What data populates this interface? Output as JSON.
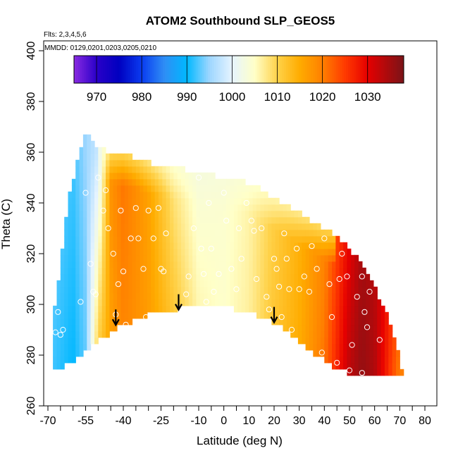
{
  "chart_data": {
    "type": "heatmap",
    "title": "ATOM2 Southbound SLP_GEOS5",
    "subtitle_flights": "Flts: 2,3,4,5,6",
    "subtitle_dates": "MMDD: 0129,0201,0203,0205,0210",
    "xlabel": "Latitude (deg N)",
    "ylabel": "Theta (C)",
    "xlim": [
      -70,
      80
    ],
    "ylim": [
      260,
      400
    ],
    "x_ticks_labeled": [
      -70,
      -55,
      -40,
      -25,
      -10,
      0,
      10,
      20,
      30,
      40,
      50,
      60,
      70,
      80
    ],
    "x_ticks_minor": [
      -65,
      -60,
      -50,
      -45,
      -35,
      -30,
      -20,
      -15,
      -5,
      5,
      15,
      25,
      35,
      45,
      55,
      65,
      75
    ],
    "y_ticks": [
      260,
      280,
      300,
      320,
      340,
      360,
      380,
      400
    ],
    "colorbar": {
      "min": 965,
      "max": 1038,
      "ticks": [
        970,
        980,
        990,
        1000,
        1010,
        1020,
        1030
      ],
      "stops": [
        {
          "v": 965,
          "c": "#8a2be2"
        },
        {
          "v": 970,
          "c": "#2a00c8"
        },
        {
          "v": 975,
          "c": "#0000c0"
        },
        {
          "v": 980,
          "c": "#0a3cf0"
        },
        {
          "v": 985,
          "c": "#2f8ef5"
        },
        {
          "v": 990,
          "c": "#00b8ff"
        },
        {
          "v": 995,
          "c": "#9ed6ff"
        },
        {
          "v": 1000,
          "c": "#e6f4ff"
        },
        {
          "v": 1005,
          "c": "#ffffc8"
        },
        {
          "v": 1010,
          "c": "#ffd24a"
        },
        {
          "v": 1015,
          "c": "#ffac00"
        },
        {
          "v": 1020,
          "c": "#ff7f00"
        },
        {
          "v": 1025,
          "c": "#ff3a00"
        },
        {
          "v": 1030,
          "c": "#e60000"
        },
        {
          "v": 1038,
          "c": "#7a1418"
        }
      ]
    },
    "field": {
      "description_lat": [
        -68,
        -60,
        -55,
        -50,
        -45,
        -40,
        -30,
        -20,
        -10,
        0,
        10,
        20,
        30,
        40,
        50,
        55,
        60,
        65,
        70
      ],
      "slp_at_low_theta": [
        992,
        990,
        993,
        1012,
        1016,
        1019,
        1017,
        1013,
        1007,
        1005,
        1007,
        1012,
        1015,
        1021,
        1033,
        1036,
        1034,
        1027,
        1020
      ],
      "slp_at_high_theta": [
        994,
        992,
        995,
        998,
        1018,
        1021,
        1016,
        1007,
        1003,
        1004,
        1006,
        1010,
        1014,
        1018,
        1028,
        1034,
        1033,
        1030,
        1026
      ]
    },
    "coverage": [
      {
        "lat": -68,
        "theta_min": 274,
        "theta_max": 293
      },
      {
        "lat": -65,
        "theta_min": 275,
        "theta_max": 315
      },
      {
        "lat": -62,
        "theta_min": 277,
        "theta_max": 340
      },
      {
        "lat": -58,
        "theta_min": 279,
        "theta_max": 358
      },
      {
        "lat": -55,
        "theta_min": 282,
        "theta_max": 367
      },
      {
        "lat": -50,
        "theta_min": 286,
        "theta_max": 362
      },
      {
        "lat": -45,
        "theta_min": 289,
        "theta_max": 360
      },
      {
        "lat": -40,
        "theta_min": 292,
        "theta_max": 359
      },
      {
        "lat": -35,
        "theta_min": 294,
        "theta_max": 358
      },
      {
        "lat": -30,
        "theta_min": 296,
        "theta_max": 356
      },
      {
        "lat": -25,
        "theta_min": 297,
        "theta_max": 355
      },
      {
        "lat": -20,
        "theta_min": 298,
        "theta_max": 354
      },
      {
        "lat": -15,
        "theta_min": 299,
        "theta_max": 353
      },
      {
        "lat": -10,
        "theta_min": 300,
        "theta_max": 352
      },
      {
        "lat": -5,
        "theta_min": 299,
        "theta_max": 351
      },
      {
        "lat": 0,
        "theta_min": 299,
        "theta_max": 350
      },
      {
        "lat": 5,
        "theta_min": 298,
        "theta_max": 349
      },
      {
        "lat": 10,
        "theta_min": 297,
        "theta_max": 348
      },
      {
        "lat": 15,
        "theta_min": 295,
        "theta_max": 345
      },
      {
        "lat": 20,
        "theta_min": 293,
        "theta_max": 342
      },
      {
        "lat": 25,
        "theta_min": 289,
        "theta_max": 339
      },
      {
        "lat": 30,
        "theta_min": 285,
        "theta_max": 336
      },
      {
        "lat": 35,
        "theta_min": 281,
        "theta_max": 333
      },
      {
        "lat": 40,
        "theta_min": 278,
        "theta_max": 330
      },
      {
        "lat": 45,
        "theta_min": 275,
        "theta_max": 327
      },
      {
        "lat": 50,
        "theta_min": 273,
        "theta_max": 322
      },
      {
        "lat": 55,
        "theta_min": 272,
        "theta_max": 316
      },
      {
        "lat": 60,
        "theta_min": 272,
        "theta_max": 307
      },
      {
        "lat": 65,
        "theta_min": 272,
        "theta_max": 296
      },
      {
        "lat": 68,
        "theta_min": 272,
        "theta_max": 287
      },
      {
        "lat": 71,
        "theta_min": 272,
        "theta_max": 273
      }
    ],
    "observations": [
      {
        "lat": -67,
        "theta": 289
      },
      {
        "lat": -66,
        "theta": 297
      },
      {
        "lat": -65,
        "theta": 288
      },
      {
        "lat": -64,
        "theta": 290
      },
      {
        "lat": -57,
        "theta": 301
      },
      {
        "lat": -55,
        "theta": 344
      },
      {
        "lat": -53,
        "theta": 316
      },
      {
        "lat": -52,
        "theta": 305
      },
      {
        "lat": -51,
        "theta": 304
      },
      {
        "lat": -50,
        "theta": 350
      },
      {
        "lat": -48,
        "theta": 337
      },
      {
        "lat": -47,
        "theta": 345
      },
      {
        "lat": -46,
        "theta": 330
      },
      {
        "lat": -44,
        "theta": 320
      },
      {
        "lat": -43,
        "theta": 296
      },
      {
        "lat": -42,
        "theta": 308
      },
      {
        "lat": -41,
        "theta": 337
      },
      {
        "lat": -40,
        "theta": 313
      },
      {
        "lat": -39,
        "theta": 292
      },
      {
        "lat": -37,
        "theta": 326
      },
      {
        "lat": -35,
        "theta": 338
      },
      {
        "lat": -34,
        "theta": 326
      },
      {
        "lat": -32,
        "theta": 314
      },
      {
        "lat": -31,
        "theta": 295
      },
      {
        "lat": -30,
        "theta": 337
      },
      {
        "lat": -28,
        "theta": 326
      },
      {
        "lat": -26,
        "theta": 338
      },
      {
        "lat": -25,
        "theta": 314
      },
      {
        "lat": -24,
        "theta": 313
      },
      {
        "lat": -23,
        "theta": 328
      },
      {
        "lat": -15,
        "theta": 304
      },
      {
        "lat": -14,
        "theta": 311
      },
      {
        "lat": -12,
        "theta": 330
      },
      {
        "lat": -10,
        "theta": 350
      },
      {
        "lat": -9,
        "theta": 322
      },
      {
        "lat": -8,
        "theta": 312
      },
      {
        "lat": -7,
        "theta": 301
      },
      {
        "lat": -6,
        "theta": 340
      },
      {
        "lat": -5,
        "theta": 322
      },
      {
        "lat": -4,
        "theta": 305
      },
      {
        "lat": -2,
        "theta": 312
      },
      {
        "lat": 0,
        "theta": 344
      },
      {
        "lat": 1,
        "theta": 333
      },
      {
        "lat": 3,
        "theta": 314
      },
      {
        "lat": 5,
        "theta": 306
      },
      {
        "lat": 6,
        "theta": 330
      },
      {
        "lat": 7,
        "theta": 318
      },
      {
        "lat": 9,
        "theta": 340
      },
      {
        "lat": 11,
        "theta": 333
      },
      {
        "lat": 12,
        "theta": 329
      },
      {
        "lat": 13,
        "theta": 310
      },
      {
        "lat": 15,
        "theta": 330
      },
      {
        "lat": 17,
        "theta": 303
      },
      {
        "lat": 18,
        "theta": 298
      },
      {
        "lat": 20,
        "theta": 318
      },
      {
        "lat": 21,
        "theta": 314
      },
      {
        "lat": 22,
        "theta": 307
      },
      {
        "lat": 23,
        "theta": 295
      },
      {
        "lat": 24,
        "theta": 328
      },
      {
        "lat": 25,
        "theta": 318
      },
      {
        "lat": 26,
        "theta": 306
      },
      {
        "lat": 27,
        "theta": 290
      },
      {
        "lat": 29,
        "theta": 322
      },
      {
        "lat": 30,
        "theta": 306
      },
      {
        "lat": 32,
        "theta": 311
      },
      {
        "lat": 34,
        "theta": 305
      },
      {
        "lat": 35,
        "theta": 323
      },
      {
        "lat": 37,
        "theta": 314
      },
      {
        "lat": 39,
        "theta": 281
      },
      {
        "lat": 40,
        "theta": 326
      },
      {
        "lat": 42,
        "theta": 308
      },
      {
        "lat": 43,
        "theta": 295
      },
      {
        "lat": 45,
        "theta": 277
      },
      {
        "lat": 46,
        "theta": 310
      },
      {
        "lat": 47,
        "theta": 320
      },
      {
        "lat": 49,
        "theta": 311
      },
      {
        "lat": 50,
        "theta": 274
      },
      {
        "lat": 51,
        "theta": 284
      },
      {
        "lat": 53,
        "theta": 303
      },
      {
        "lat": 55,
        "theta": 311
      },
      {
        "lat": 56,
        "theta": 297
      },
      {
        "lat": 57,
        "theta": 291
      },
      {
        "lat": 58,
        "theta": 305
      },
      {
        "lat": 60,
        "theta": 318
      },
      {
        "lat": 62,
        "theta": 286
      },
      {
        "lat": 55,
        "theta": 273
      }
    ],
    "arrows": [
      {
        "lat": -43,
        "theta": 298
      },
      {
        "lat": -18,
        "theta": 304
      },
      {
        "lat": 20,
        "theta": 299
      }
    ]
  }
}
